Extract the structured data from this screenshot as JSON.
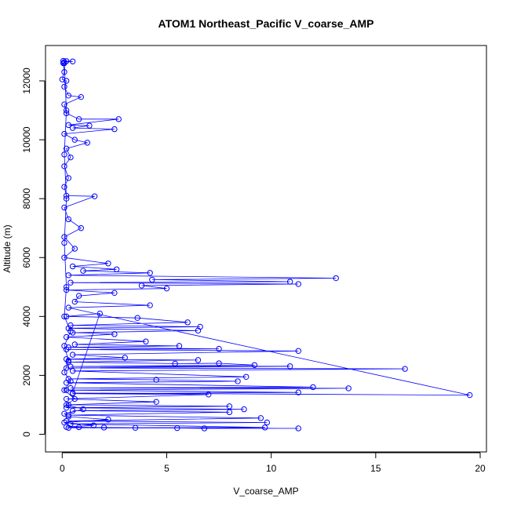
{
  "chart_data": {
    "type": "scatter",
    "title": "ATOM1 Northeast_Pacific V_coarse_AMP",
    "xlabel": "V_coarse_AMP",
    "ylabel": "Altitude (m)",
    "xlim": [
      -0.8,
      20.3
    ],
    "ylim": [
      -600,
      13200
    ],
    "xticks": [
      0,
      5,
      10,
      15,
      20
    ],
    "yticks": [
      0,
      2000,
      4000,
      6000,
      8000,
      10000,
      12000
    ],
    "xtick_labels": [
      "0",
      "5",
      "10",
      "15",
      "20"
    ],
    "ytick_labels": [
      "0",
      "2000",
      "4000",
      "6000",
      "8000",
      "10000",
      "12000"
    ],
    "grid": false,
    "legend": "none",
    "color": "#0000ff",
    "series": [
      {
        "marker": "open-circle",
        "connected": true,
        "points": [
          [
            0.05,
            12680
          ],
          [
            0.2,
            12670
          ],
          [
            0.5,
            12660
          ],
          [
            0.1,
            12640
          ],
          [
            0.05,
            12600
          ],
          [
            0.1,
            12300
          ],
          [
            0.0,
            12050
          ],
          [
            0.2,
            12000
          ],
          [
            0.1,
            11800
          ],
          [
            0.3,
            11500
          ],
          [
            0.9,
            11450
          ],
          [
            0.1,
            11200
          ],
          [
            0.2,
            10900
          ],
          [
            0.8,
            10700
          ],
          [
            2.7,
            10700
          ],
          [
            0.3,
            10500
          ],
          [
            1.3,
            10480
          ],
          [
            0.5,
            10400
          ],
          [
            2.5,
            10360
          ],
          [
            0.1,
            10200
          ],
          [
            0.6,
            10000
          ],
          [
            1.2,
            9900
          ],
          [
            0.2,
            9700
          ],
          [
            0.4,
            9400
          ],
          [
            0.1,
            9100
          ],
          [
            0.3,
            8700
          ],
          [
            0.1,
            8400
          ],
          [
            0.2,
            8100
          ],
          [
            1.55,
            8080
          ],
          [
            0.1,
            7700
          ],
          [
            0.3,
            7300
          ],
          [
            0.9,
            7000
          ],
          [
            0.1,
            6700
          ],
          [
            0.6,
            6300
          ],
          [
            0.1,
            6000
          ],
          [
            2.2,
            5800
          ],
          [
            0.5,
            5700
          ],
          [
            2.6,
            5600
          ],
          [
            1.0,
            5550
          ],
          [
            4.2,
            5480
          ],
          [
            0.3,
            5400
          ],
          [
            13.1,
            5300
          ],
          [
            4.3,
            5250
          ],
          [
            10.9,
            5180
          ],
          [
            0.4,
            5150
          ],
          [
            11.3,
            5100
          ],
          [
            3.8,
            5050
          ],
          [
            5.0,
            4950
          ],
          [
            0.2,
            4900
          ],
          [
            2.5,
            4800
          ],
          [
            0.8,
            4700
          ],
          [
            0.6,
            4500
          ],
          [
            4.2,
            4380
          ],
          [
            0.3,
            4300
          ],
          [
            19.5,
            1330
          ],
          [
            0.5,
            1400
          ],
          [
            1.8,
            4100
          ],
          [
            0.2,
            4000
          ],
          [
            3.6,
            3950
          ],
          [
            6.0,
            3800
          ],
          [
            0.4,
            3700
          ],
          [
            6.6,
            3650
          ],
          [
            0.3,
            3600
          ],
          [
            6.5,
            3520
          ],
          [
            0.5,
            3450
          ],
          [
            2.5,
            3400
          ],
          [
            0.2,
            3300
          ],
          [
            4.0,
            3150
          ],
          [
            0.6,
            3050
          ],
          [
            5.6,
            3000
          ],
          [
            0.3,
            2950
          ],
          [
            7.5,
            2900
          ],
          [
            0.2,
            2880
          ],
          [
            11.3,
            2830
          ],
          [
            0.5,
            2700
          ],
          [
            3.0,
            2600
          ],
          [
            0.2,
            2550
          ],
          [
            6.5,
            2520
          ],
          [
            0.3,
            2450
          ],
          [
            5.4,
            2400
          ],
          [
            7.5,
            2410
          ],
          [
            9.2,
            2350
          ],
          [
            0.4,
            2300
          ],
          [
            10.9,
            2310
          ],
          [
            0.2,
            2250
          ],
          [
            16.4,
            2220
          ],
          [
            0.5,
            2150
          ],
          [
            8.8,
            1950
          ],
          [
            0.3,
            1880
          ],
          [
            4.5,
            1850
          ],
          [
            8.4,
            1800
          ],
          [
            0.2,
            1750
          ],
          [
            12.0,
            1600
          ],
          [
            0.4,
            1570
          ],
          [
            13.7,
            1560
          ],
          [
            0.2,
            1500
          ],
          [
            11.3,
            1420
          ],
          [
            0.5,
            1380
          ],
          [
            7.0,
            1350
          ],
          [
            0.2,
            1200
          ],
          [
            4.5,
            1100
          ],
          [
            0.3,
            1000
          ],
          [
            8.0,
            950
          ],
          [
            0.2,
            900
          ],
          [
            8.7,
            850
          ],
          [
            0.5,
            800
          ],
          [
            8.0,
            750
          ],
          [
            0.3,
            650
          ],
          [
            9.5,
            550
          ],
          [
            0.2,
            450
          ],
          [
            9.8,
            400
          ],
          [
            0.4,
            350
          ],
          [
            9.7,
            230
          ],
          [
            0.3,
            220
          ],
          [
            11.3,
            200
          ],
          [
            6.8,
            200
          ],
          [
            5.5,
            210
          ],
          [
            3.5,
            220
          ],
          [
            2.0,
            230
          ],
          [
            0.8,
            240
          ],
          [
            0.2,
            250
          ],
          [
            1.5,
            300
          ],
          [
            0.1,
            400
          ],
          [
            2.2,
            500
          ],
          [
            0.3,
            600
          ],
          [
            0.1,
            700
          ],
          [
            1.0,
            850
          ],
          [
            0.2,
            1000
          ],
          [
            0.6,
            1200
          ],
          [
            0.1,
            1500
          ],
          [
            0.4,
            1800
          ],
          [
            0.1,
            2100
          ],
          [
            0.3,
            2500
          ],
          [
            0.1,
            3000
          ],
          [
            0.4,
            3500
          ],
          [
            0.1,
            4000
          ],
          [
            0.2,
            5000
          ],
          [
            0.1,
            6500
          ],
          [
            0.2,
            8000
          ],
          [
            0.1,
            9500
          ],
          [
            0.2,
            11000
          ],
          [
            0.1,
            12600
          ]
        ]
      }
    ]
  }
}
